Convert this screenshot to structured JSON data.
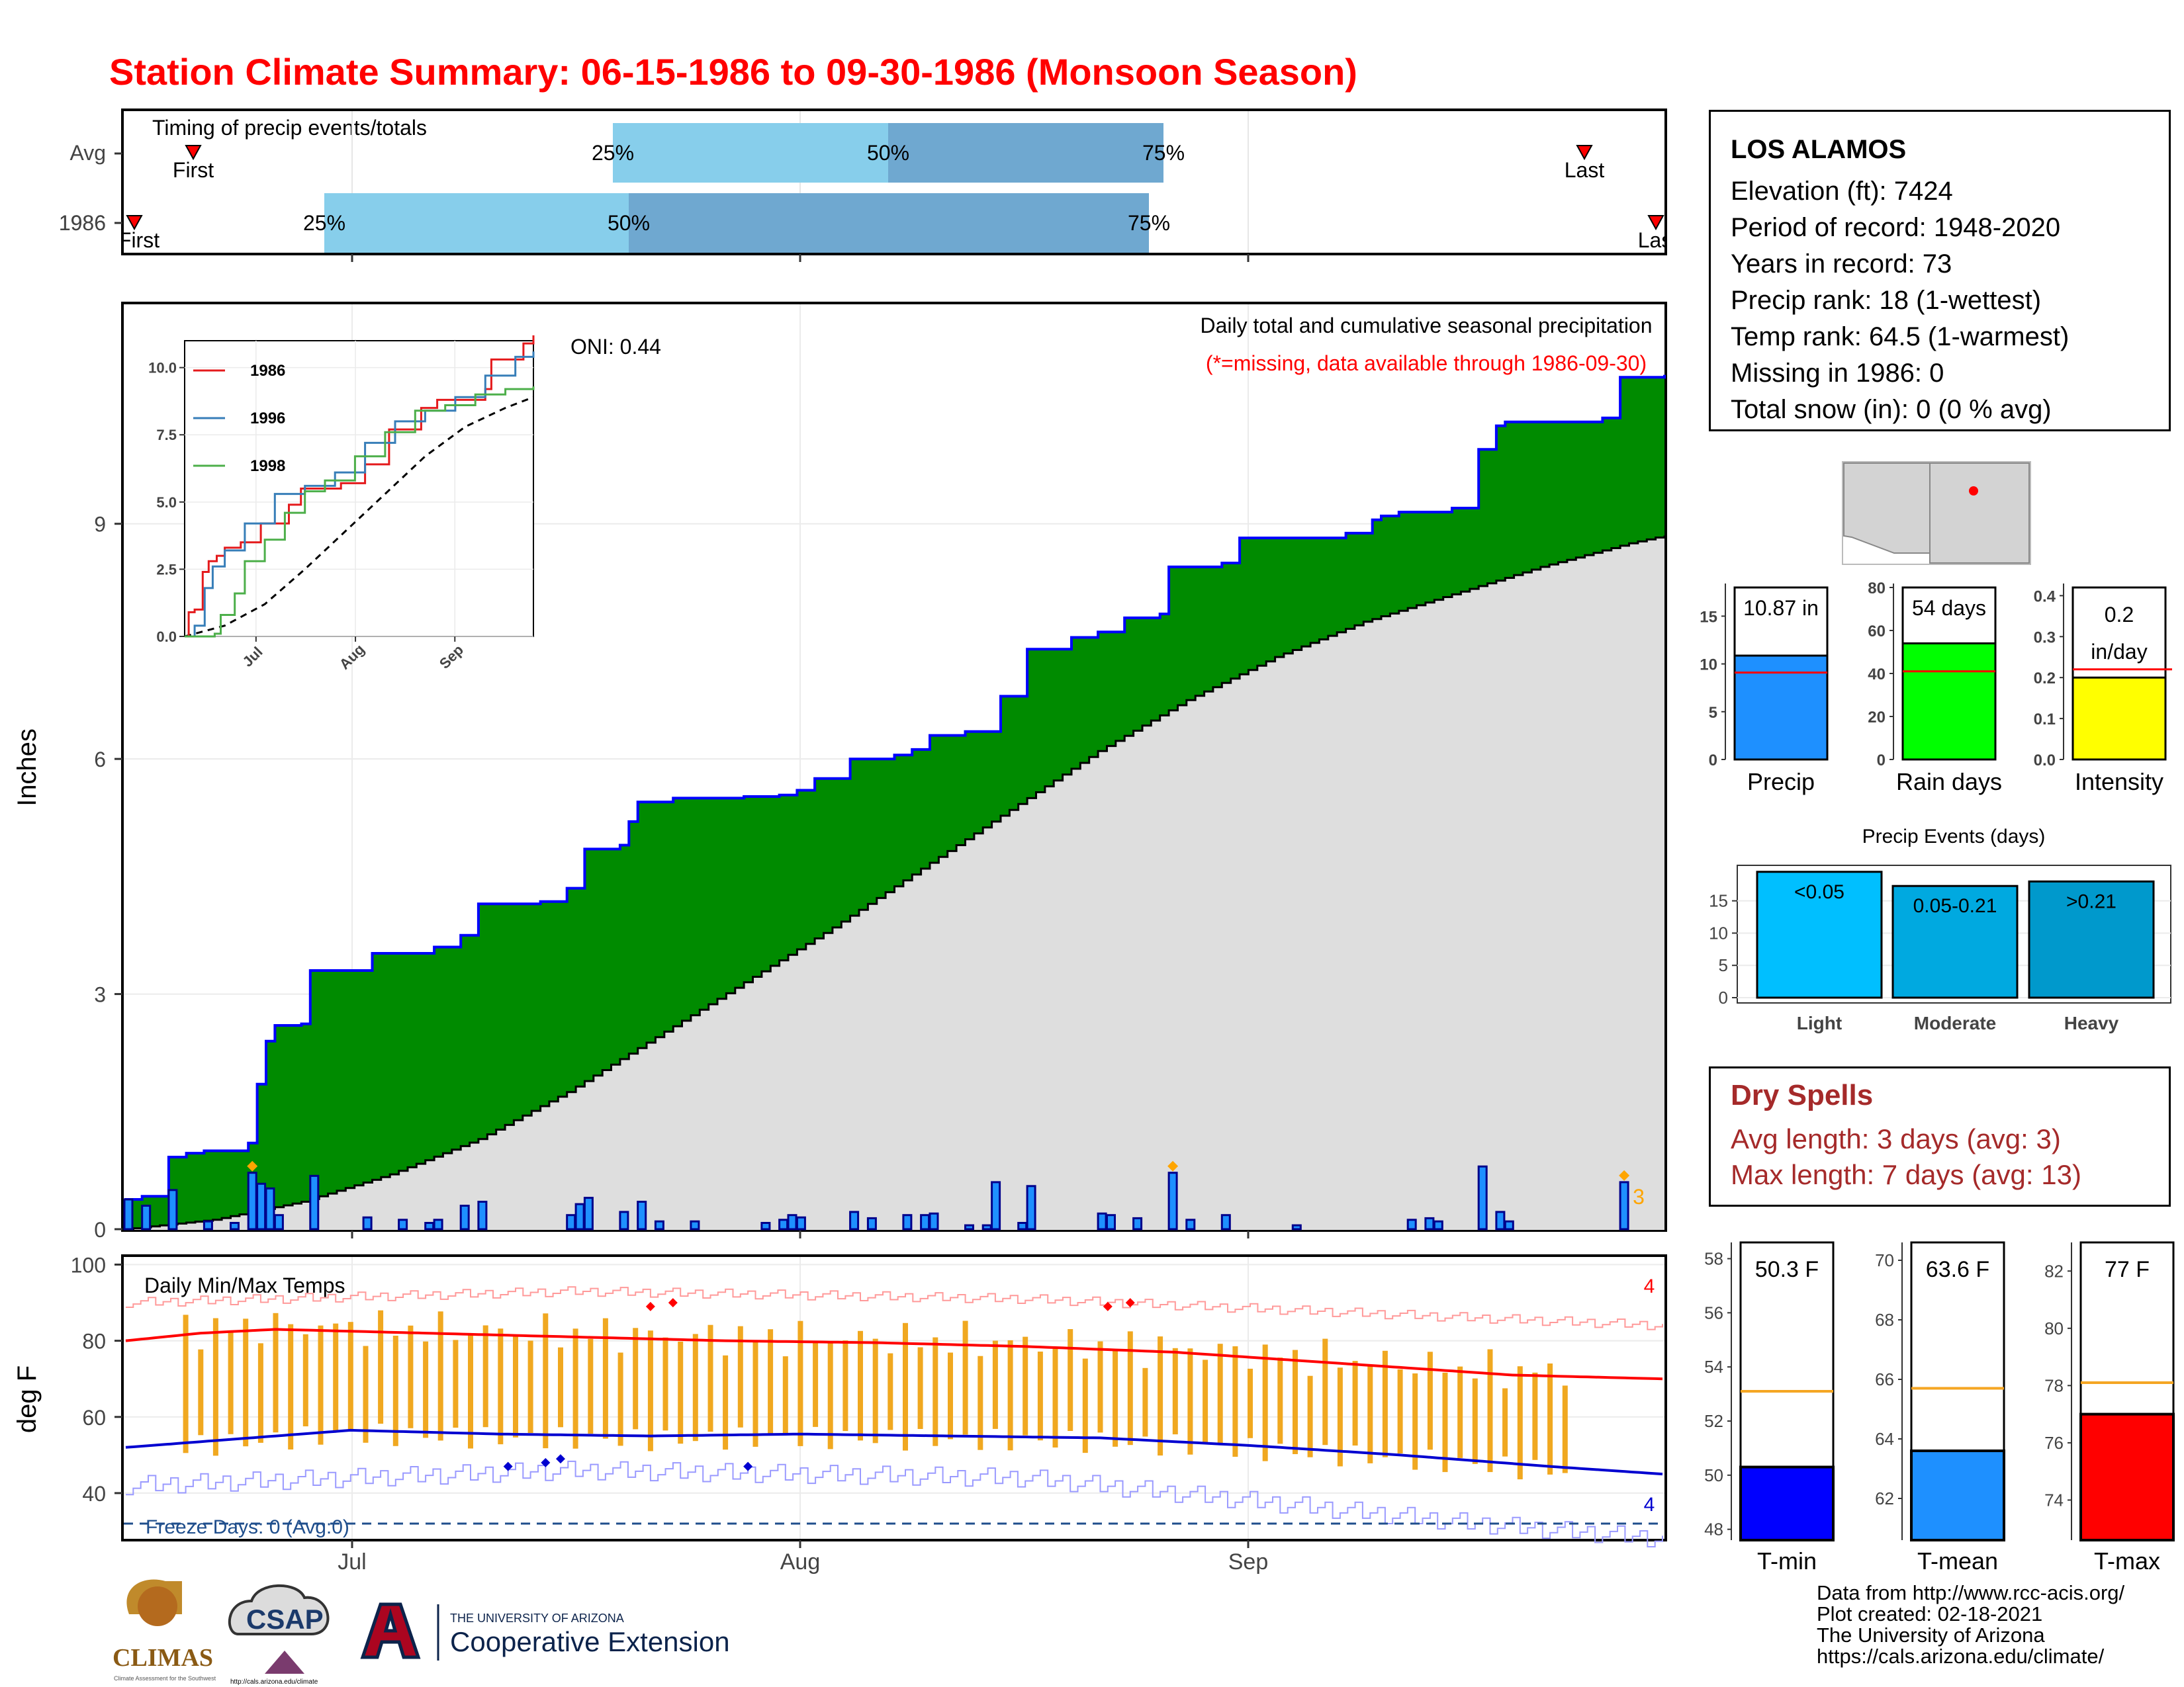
{
  "title": "Station Climate Summary: 06-15-1986 to 09-30-1986 (Monsoon Season)",
  "timing_panel": {
    "title": "Timing of precip events/totals",
    "rows": [
      {
        "label": "Avg",
        "first_label": "First",
        "last_label": "Last",
        "p25": "25%",
        "p50": "50%",
        "p75": "75%"
      },
      {
        "label": "1986",
        "first_label": "First",
        "last_label": "Last",
        "p25": "25%",
        "p50": "50%",
        "p75": "75%"
      }
    ]
  },
  "main_panel": {
    "ylabel": "Inches",
    "oni": "ONI: 0.44",
    "caption1": "Daily total and cumulative seasonal precipitation",
    "caption2": "(*=missing, data available through 1986-09-30)",
    "count_label": "3",
    "y_ticks": [
      "0",
      "3",
      "6",
      "9"
    ],
    "x_ticks": [
      "Jul",
      "Aug",
      "Sep"
    ]
  },
  "inset": {
    "legend": [
      "1986",
      "1996",
      "1998"
    ],
    "y_ticks": [
      "0.0",
      "2.5",
      "5.0",
      "7.5",
      "10.0"
    ],
    "x_ticks": [
      "Jul",
      "Aug",
      "Sep"
    ]
  },
  "temp_panel": {
    "ylabel": "deg F",
    "title": "Daily Min/Max Temps",
    "freeze": "Freeze Days: 0 (Avg:0)",
    "count_hi": "4",
    "count_lo": "4",
    "y_ticks": [
      "40",
      "60",
      "80",
      "100"
    ],
    "x_ticks": [
      "Jul",
      "Aug",
      "Sep"
    ]
  },
  "station": {
    "name": "LOS ALAMOS",
    "lines": [
      "Elevation (ft): 7424",
      "Period of record: 1948-2020",
      "Years in record: 73",
      "Precip rank: 18 (1-wettest)",
      "Temp rank: 64.5 (1-warmest)",
      "Missing in 1986: 0",
      "Total snow (in): 0 (0 % avg)"
    ]
  },
  "summary_bars": [
    {
      "label": "Precip",
      "value_text": "10.87 in",
      "value": 10.87,
      "avg": 9.1,
      "color": "#1e90ff",
      "ymax": 18,
      "ticks": [
        "0",
        "5",
        "10",
        "15"
      ],
      "tickvals": [
        0,
        5,
        10,
        15
      ]
    },
    {
      "label": "Rain days",
      "value_text": "54 days",
      "value": 54,
      "avg": 41,
      "color": "#00ff00",
      "ymax": 80,
      "ticks": [
        "0",
        "20",
        "40",
        "60",
        "80"
      ],
      "tickvals": [
        0,
        20,
        40,
        60,
        80
      ]
    },
    {
      "label": "Intensity",
      "value_text": "0.2 in/day",
      "value_line1": "0.2",
      "value_line2": "in/day",
      "value": 0.2,
      "avg": 0.22,
      "color": "#ffff00",
      "ymax": 0.42,
      "ticks": [
        "0.0",
        "0.1",
        "0.2",
        "0.3",
        "0.4"
      ],
      "tickvals": [
        0,
        0.1,
        0.2,
        0.3,
        0.4
      ]
    }
  ],
  "events": {
    "title": "Precip Events (days)",
    "ticks": [
      "0",
      "5",
      "10",
      "15"
    ],
    "bars": [
      {
        "label": "Light",
        "range": "<0.05",
        "value": 19.5,
        "color": "#00bfff"
      },
      {
        "label": "Moderate",
        "range": "0.05-0.21",
        "value": 17.3,
        "color": "#00a9e0"
      },
      {
        "label": "Heavy",
        "range": ">0.21",
        "value": 18.0,
        "color": "#0099cc"
      }
    ]
  },
  "dry_spells": {
    "title": "Dry Spells",
    "avg_length": "Avg length: 3 days (avg: 3)",
    "max_length": "Max length: 7 days (avg: 13)"
  },
  "temp_bars": [
    {
      "label": "T-min",
      "value_text": "50.3 F",
      "value": 50.3,
      "avg": 53.1,
      "color": "#0000ff",
      "ymin": 47.6,
      "ymax": 58.6,
      "ticks": [
        "48",
        "50",
        "52",
        "54",
        "56",
        "58"
      ],
      "tickvals": [
        48,
        50,
        52,
        54,
        56,
        58
      ]
    },
    {
      "label": "T-mean",
      "value_text": "63.6 F",
      "value": 63.6,
      "avg": 65.7,
      "color": "#1e90ff",
      "ymin": 60.6,
      "ymax": 70.6,
      "ticks": [
        "62",
        "64",
        "66",
        "68",
        "70"
      ],
      "tickvals": [
        62,
        64,
        66,
        68,
        70
      ]
    },
    {
      "label": "T-max",
      "value_text": "77 F",
      "value": 77.0,
      "avg": 78.1,
      "color": "#ff0000",
      "ymin": 72.6,
      "ymax": 83.0,
      "ticks": [
        "74",
        "76",
        "78",
        "80",
        "82"
      ],
      "tickvals": [
        74,
        76,
        78,
        80,
        82
      ]
    }
  ],
  "footer": [
    "Data from http://www.rcc-acis.org/",
    "Plot created: 02-18-2021",
    "The University of Arizona",
    "https://cals.arizona.edu/climate/"
  ],
  "logos": {
    "climas": "CLIMAS",
    "climas_sub": "Climate Assessment for the Southwest",
    "csap": "CSAP",
    "csap_url": "http://cals.arizona.edu/climate",
    "ua_small": "THE UNIVERSITY OF ARIZONA",
    "ua_big": "Cooperative Extension"
  },
  "chart_data": {
    "type": "area",
    "title": "Daily total and cumulative seasonal precipitation",
    "ylabel": "Inches",
    "ylim": [
      0,
      11.8
    ],
    "x_range": [
      "1986-06-15",
      "1986-09-30"
    ],
    "cumulative_1986": [
      [
        0,
        0.38
      ],
      [
        2,
        0.42
      ],
      [
        5,
        0.92
      ],
      [
        7,
        0.97
      ],
      [
        9,
        1.0
      ],
      [
        14,
        1.1
      ],
      [
        15,
        1.85
      ],
      [
        16,
        2.4
      ],
      [
        17,
        2.6
      ],
      [
        20,
        2.62
      ],
      [
        21,
        3.3
      ],
      [
        28,
        3.52
      ],
      [
        35,
        3.6
      ],
      [
        38,
        3.75
      ],
      [
        40,
        4.15
      ],
      [
        47,
        4.18
      ],
      [
        50,
        4.35
      ],
      [
        52,
        4.85
      ],
      [
        56,
        4.9
      ],
      [
        57,
        5.2
      ],
      [
        58,
        5.45
      ],
      [
        62,
        5.5
      ],
      [
        70,
        5.52
      ],
      [
        74,
        5.54
      ],
      [
        76,
        5.6
      ],
      [
        78,
        5.75
      ],
      [
        80,
        5.75
      ],
      [
        82,
        6.0
      ],
      [
        87,
        6.05
      ],
      [
        89,
        6.12
      ],
      [
        91,
        6.3
      ],
      [
        95,
        6.35
      ],
      [
        99,
        6.8
      ],
      [
        102,
        7.4
      ],
      [
        107,
        7.55
      ],
      [
        110,
        7.62
      ],
      [
        113,
        7.8
      ],
      [
        117,
        7.85
      ],
      [
        118,
        8.45
      ],
      [
        124,
        8.5
      ],
      [
        126,
        8.82
      ],
      [
        138,
        8.88
      ],
      [
        141,
        9.05
      ],
      [
        142,
        9.1
      ],
      [
        144,
        9.15
      ],
      [
        150,
        9.2
      ],
      [
        153,
        9.95
      ],
      [
        155,
        10.25
      ],
      [
        156,
        10.3
      ],
      [
        167,
        10.35
      ],
      [
        169,
        10.87
      ],
      [
        174,
        10.9
      ]
    ],
    "average_cumulative": [
      [
        0,
        0.0
      ],
      [
        10,
        0.12
      ],
      [
        20,
        0.35
      ],
      [
        30,
        0.7
      ],
      [
        40,
        1.15
      ],
      [
        50,
        1.75
      ],
      [
        60,
        2.45
      ],
      [
        70,
        3.15
      ],
      [
        80,
        3.85
      ],
      [
        90,
        4.6
      ],
      [
        100,
        5.35
      ],
      [
        110,
        6.1
      ],
      [
        120,
        6.75
      ],
      [
        130,
        7.3
      ],
      [
        140,
        7.75
      ],
      [
        150,
        8.1
      ],
      [
        160,
        8.45
      ],
      [
        170,
        8.75
      ],
      [
        174,
        8.85
      ]
    ],
    "daily_1986": [
      [
        0,
        0.38
      ],
      [
        2,
        0.3
      ],
      [
        5,
        0.5
      ],
      [
        9,
        0.1
      ],
      [
        12,
        0.08
      ],
      [
        14,
        0.72
      ],
      [
        15,
        0.58
      ],
      [
        16,
        0.52
      ],
      [
        17,
        0.18
      ],
      [
        21,
        0.68
      ],
      [
        27,
        0.15
      ],
      [
        31,
        0.12
      ],
      [
        34,
        0.08
      ],
      [
        35,
        0.12
      ],
      [
        38,
        0.3
      ],
      [
        40,
        0.35
      ],
      [
        50,
        0.18
      ],
      [
        51,
        0.32
      ],
      [
        52,
        0.4
      ],
      [
        56,
        0.22
      ],
      [
        58,
        0.35
      ],
      [
        60,
        0.1
      ],
      [
        64,
        0.1
      ],
      [
        72,
        0.08
      ],
      [
        74,
        0.12
      ],
      [
        75,
        0.18
      ],
      [
        76,
        0.15
      ],
      [
        82,
        0.22
      ],
      [
        84,
        0.14
      ],
      [
        88,
        0.18
      ],
      [
        90,
        0.18
      ],
      [
        91,
        0.2
      ],
      [
        95,
        0.05
      ],
      [
        97,
        0.05
      ],
      [
        98,
        0.6
      ],
      [
        101,
        0.08
      ],
      [
        102,
        0.55
      ],
      [
        110,
        0.2
      ],
      [
        111,
        0.18
      ],
      [
        114,
        0.14
      ],
      [
        118,
        0.72
      ],
      [
        120,
        0.12
      ],
      [
        124,
        0.18
      ],
      [
        132,
        0.05
      ],
      [
        145,
        0.12
      ],
      [
        147,
        0.14
      ],
      [
        148,
        0.1
      ],
      [
        153,
        0.8
      ],
      [
        155,
        0.22
      ],
      [
        156,
        0.1
      ],
      [
        169,
        0.6
      ]
    ],
    "inset": {
      "type": "line",
      "ylim": [
        0,
        11
      ],
      "series": [
        {
          "name": "1986",
          "color": "#e41a1c",
          "points": [
            [
              0,
              0
            ],
            [
              2,
              0.9
            ],
            [
              5,
              1.0
            ],
            [
              9,
              2.4
            ],
            [
              12,
              2.8
            ],
            [
              16,
              3.0
            ],
            [
              20,
              3.3
            ],
            [
              28,
              3.5
            ],
            [
              38,
              4.2
            ],
            [
              52,
              4.9
            ],
            [
              58,
              5.5
            ],
            [
              78,
              5.7
            ],
            [
              90,
              6.4
            ],
            [
              102,
              7.7
            ],
            [
              118,
              8.5
            ],
            [
              126,
              8.8
            ],
            [
              150,
              9.2
            ],
            [
              153,
              10.3
            ],
            [
              169,
              10.9
            ],
            [
              174,
              11.2
            ]
          ]
        },
        {
          "name": "1996",
          "color": "#377eb8",
          "points": [
            [
              0,
              0
            ],
            [
              5,
              0.4
            ],
            [
              10,
              1.8
            ],
            [
              14,
              2.6
            ],
            [
              20,
              3.2
            ],
            [
              30,
              4.2
            ],
            [
              45,
              5.3
            ],
            [
              60,
              5.6
            ],
            [
              75,
              6.1
            ],
            [
              90,
              7.2
            ],
            [
              105,
              8.0
            ],
            [
              120,
              8.4
            ],
            [
              135,
              8.9
            ],
            [
              150,
              9.7
            ],
            [
              165,
              10.4
            ],
            [
              174,
              10.6
            ]
          ]
        },
        {
          "name": "1998",
          "color": "#4daf4a",
          "points": [
            [
              0,
              0
            ],
            [
              15,
              0.1
            ],
            [
              18,
              0.8
            ],
            [
              25,
              1.6
            ],
            [
              30,
              2.8
            ],
            [
              40,
              3.6
            ],
            [
              50,
              4.6
            ],
            [
              60,
              5.4
            ],
            [
              70,
              5.8
            ],
            [
              85,
              6.7
            ],
            [
              100,
              7.6
            ],
            [
              115,
              8.4
            ],
            [
              130,
              8.6
            ],
            [
              145,
              9.0
            ],
            [
              160,
              9.2
            ],
            [
              174,
              9.3
            ]
          ]
        }
      ],
      "avg_points": [
        [
          0,
          0
        ],
        [
          20,
          0.4
        ],
        [
          40,
          1.2
        ],
        [
          60,
          2.5
        ],
        [
          80,
          3.9
        ],
        [
          100,
          5.3
        ],
        [
          120,
          6.7
        ],
        [
          140,
          7.8
        ],
        [
          160,
          8.5
        ],
        [
          174,
          8.9
        ]
      ]
    },
    "temperatures": {
      "ylim": [
        28,
        102
      ],
      "avg_max": [
        [
          0,
          80
        ],
        [
          10,
          82
        ],
        [
          20,
          83
        ],
        [
          40,
          82
        ],
        [
          60,
          81
        ],
        [
          80,
          80
        ],
        [
          100,
          79.5
        ],
        [
          120,
          78.5
        ],
        [
          140,
          77
        ],
        [
          155,
          75
        ],
        [
          170,
          73
        ],
        [
          185,
          71
        ],
        [
          205,
          70
        ]
      ],
      "avg_min": [
        [
          0,
          52
        ],
        [
          10,
          53.5
        ],
        [
          20,
          55
        ],
        [
          30,
          56.5
        ],
        [
          50,
          55.5
        ],
        [
          70,
          55
        ],
        [
          90,
          55.5
        ],
        [
          110,
          55
        ],
        [
          130,
          54.5
        ],
        [
          150,
          52.5
        ],
        [
          170,
          50
        ],
        [
          190,
          47
        ],
        [
          205,
          45
        ]
      ],
      "record_max_approx": [
        [
          0,
          90
        ],
        [
          60,
          93
        ],
        [
          120,
          91
        ],
        [
          180,
          86
        ],
        [
          205,
          84
        ]
      ],
      "record_min_approx": [
        [
          0,
          42
        ],
        [
          60,
          46
        ],
        [
          120,
          44
        ],
        [
          180,
          32
        ],
        [
          205,
          28
        ]
      ],
      "daily_range_seed": "daily max/min bars (orange) for each day, approx",
      "freeze_line": 32
    }
  }
}
